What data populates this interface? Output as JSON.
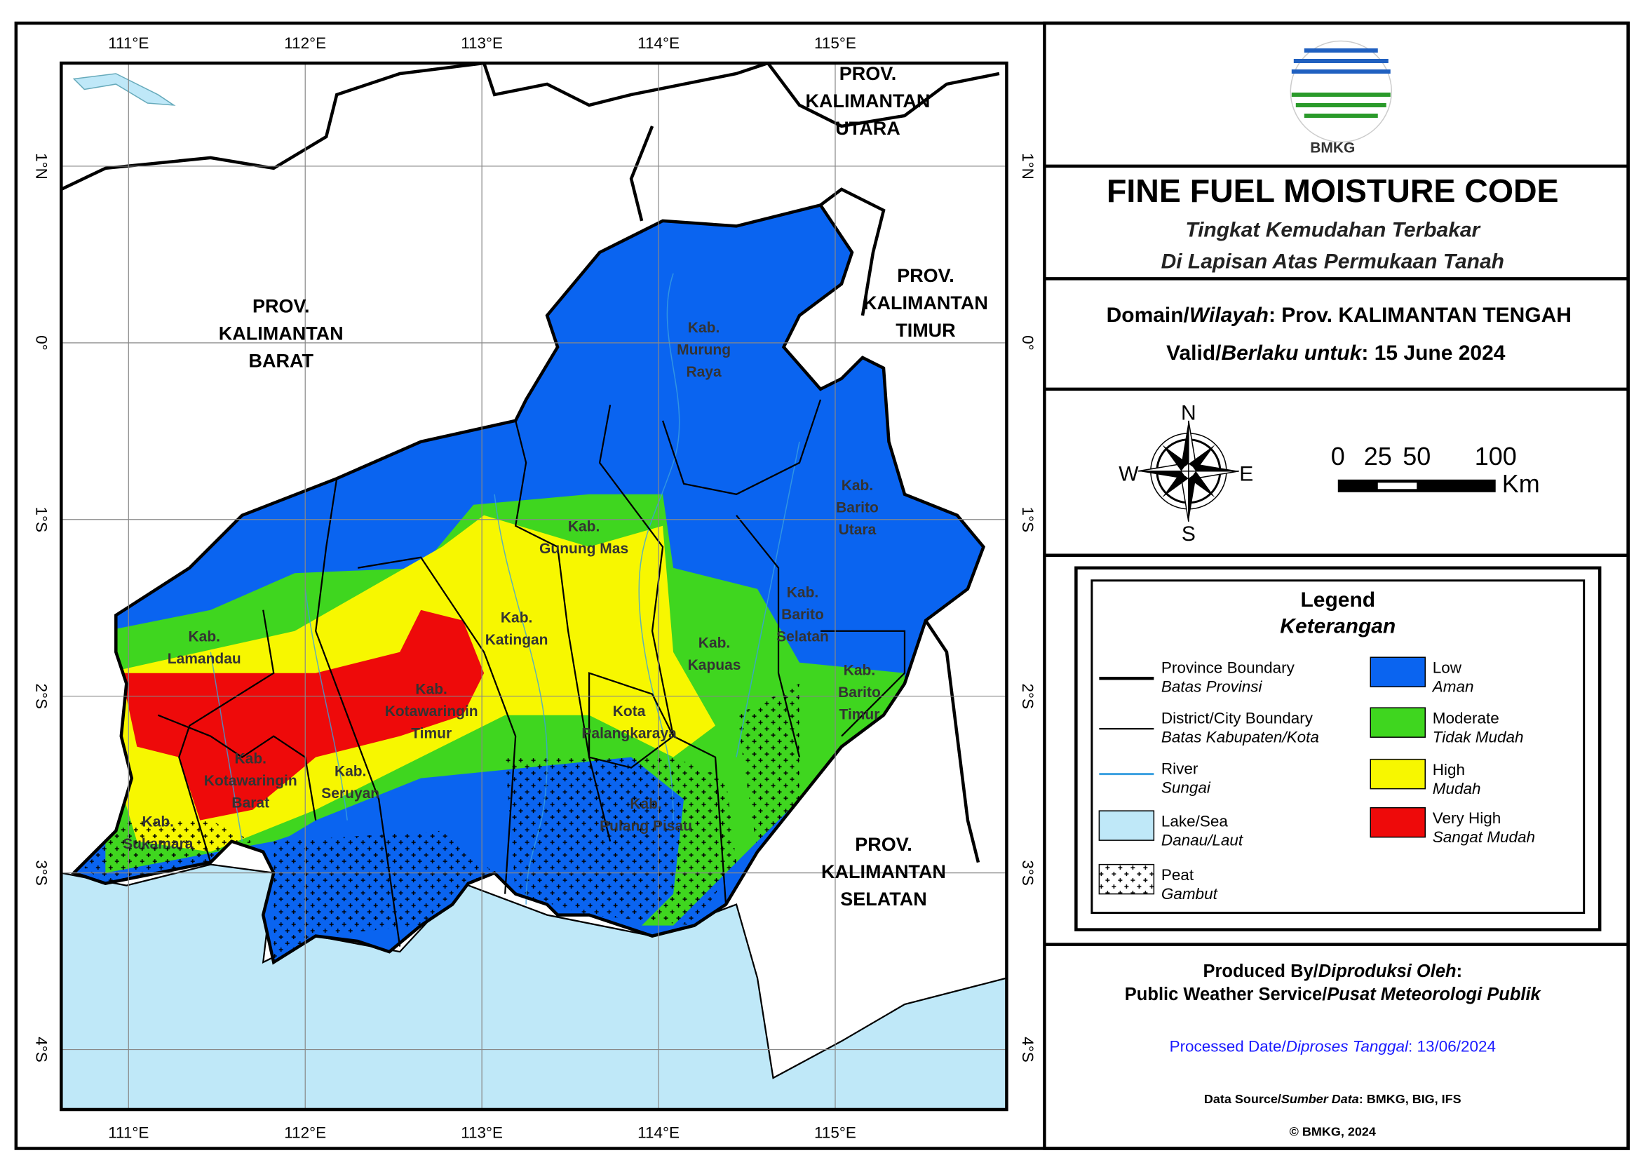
{
  "header": {
    "logo_text": "BMKG",
    "title": "FINE FUEL MOISTURE CODE",
    "subtitle": [
      "Tingkat Kemudahan Terbakar",
      "Di Lapisan Atas Permukaan Tanah"
    ]
  },
  "info": {
    "domain": [
      "Domain/",
      "Wilayah",
      ": Prov. KALIMANTAN TENGAH"
    ],
    "valid": [
      "Valid/",
      "Berlaku untuk",
      ": 15 June 2024"
    ]
  },
  "compass": {
    "n": "N",
    "e": "E",
    "s": "S",
    "w": "W"
  },
  "scale_bar": {
    "ticks": [
      "0",
      "25",
      "50",
      "100"
    ],
    "unit": "Km"
  },
  "legend": {
    "title": "Legend",
    "subtitle": "Keterangan",
    "items": [
      {
        "label": "Province Boundary",
        "sublabel": "Batas Provinsi"
      },
      {
        "label": "District/City Boundary",
        "sublabel": "Batas Kabupaten/Kota"
      },
      {
        "label": "River",
        "sublabel": "Sungai"
      },
      {
        "label": "Lake/Sea",
        "sublabel": "Danau/Laut",
        "color": "#bfe8f8"
      },
      {
        "label": "Peat",
        "sublabel": "Gambut"
      },
      {
        "label": "Low",
        "sublabel": "Aman",
        "color": "#0a64f0"
      },
      {
        "label": "Moderate",
        "sublabel": "Tidak Mudah",
        "color": "#3fd61f"
      },
      {
        "label": "High",
        "sublabel": "Mudah",
        "color": "#f7f700"
      },
      {
        "label": "Very High",
        "sublabel": "Sangat Mudah",
        "color": "#ee0a0a"
      }
    ]
  },
  "footer": {
    "produced": [
      "Produced By/",
      "Diproduksi Oleh",
      ":"
    ],
    "service": [
      "Public Weather Service/",
      "Pusat Meteorologi Publik"
    ],
    "processed": [
      "Processed Date/",
      "Diproses Tanggal",
      ": 13/06/2024"
    ],
    "source": [
      "Data Source/",
      "Sumber Data",
      ": BMKG, BIG, IFS"
    ],
    "copyright": "© BMKG, 2024"
  },
  "map": {
    "lon_labels": [
      "111°E",
      "112°E",
      "113°E",
      "114°E",
      "115°E"
    ],
    "lat_labels": [
      "1°N",
      "0°",
      "1°S",
      "2°S",
      "3°S",
      "4°S"
    ],
    "provinces": [
      {
        "lines": [
          "PROV.",
          "KALIMANTAN",
          "UTARA"
        ]
      },
      {
        "lines": [
          "PROV.",
          "KALIMANTAN",
          "BARAT"
        ]
      },
      {
        "lines": [
          "PROV.",
          "KALIMANTAN",
          "TIMUR"
        ]
      },
      {
        "lines": [
          "PROV.",
          "KALIMANTAN",
          "SELATAN"
        ]
      }
    ],
    "districts": [
      {
        "lines": [
          "Kab.",
          "Murung",
          "Raya"
        ]
      },
      {
        "lines": [
          "Kab.",
          "Barito",
          "Utara"
        ]
      },
      {
        "lines": [
          "Kab.",
          "Gunung Mas"
        ]
      },
      {
        "lines": [
          "Kab.",
          "Barito",
          "Selatan"
        ]
      },
      {
        "lines": [
          "Kab.",
          "Katingan"
        ]
      },
      {
        "lines": [
          "Kab.",
          "Lamandau"
        ]
      },
      {
        "lines": [
          "Kab.",
          "Kapuas"
        ]
      },
      {
        "lines": [
          "Kab.",
          "Barito",
          "Timur"
        ]
      },
      {
        "lines": [
          "Kab.",
          "Kotawaringin",
          "Timur"
        ]
      },
      {
        "lines": [
          "Kota",
          "Palangkaraya"
        ]
      },
      {
        "lines": [
          "Kab.",
          "Kotawaringin",
          "Barat"
        ]
      },
      {
        "lines": [
          "Kab.",
          "Seruyan"
        ]
      },
      {
        "lines": [
          "Kab.",
          "Sukamara"
        ]
      },
      {
        "lines": [
          "Kab.",
          "Pulang Pisau"
        ]
      }
    ]
  }
}
